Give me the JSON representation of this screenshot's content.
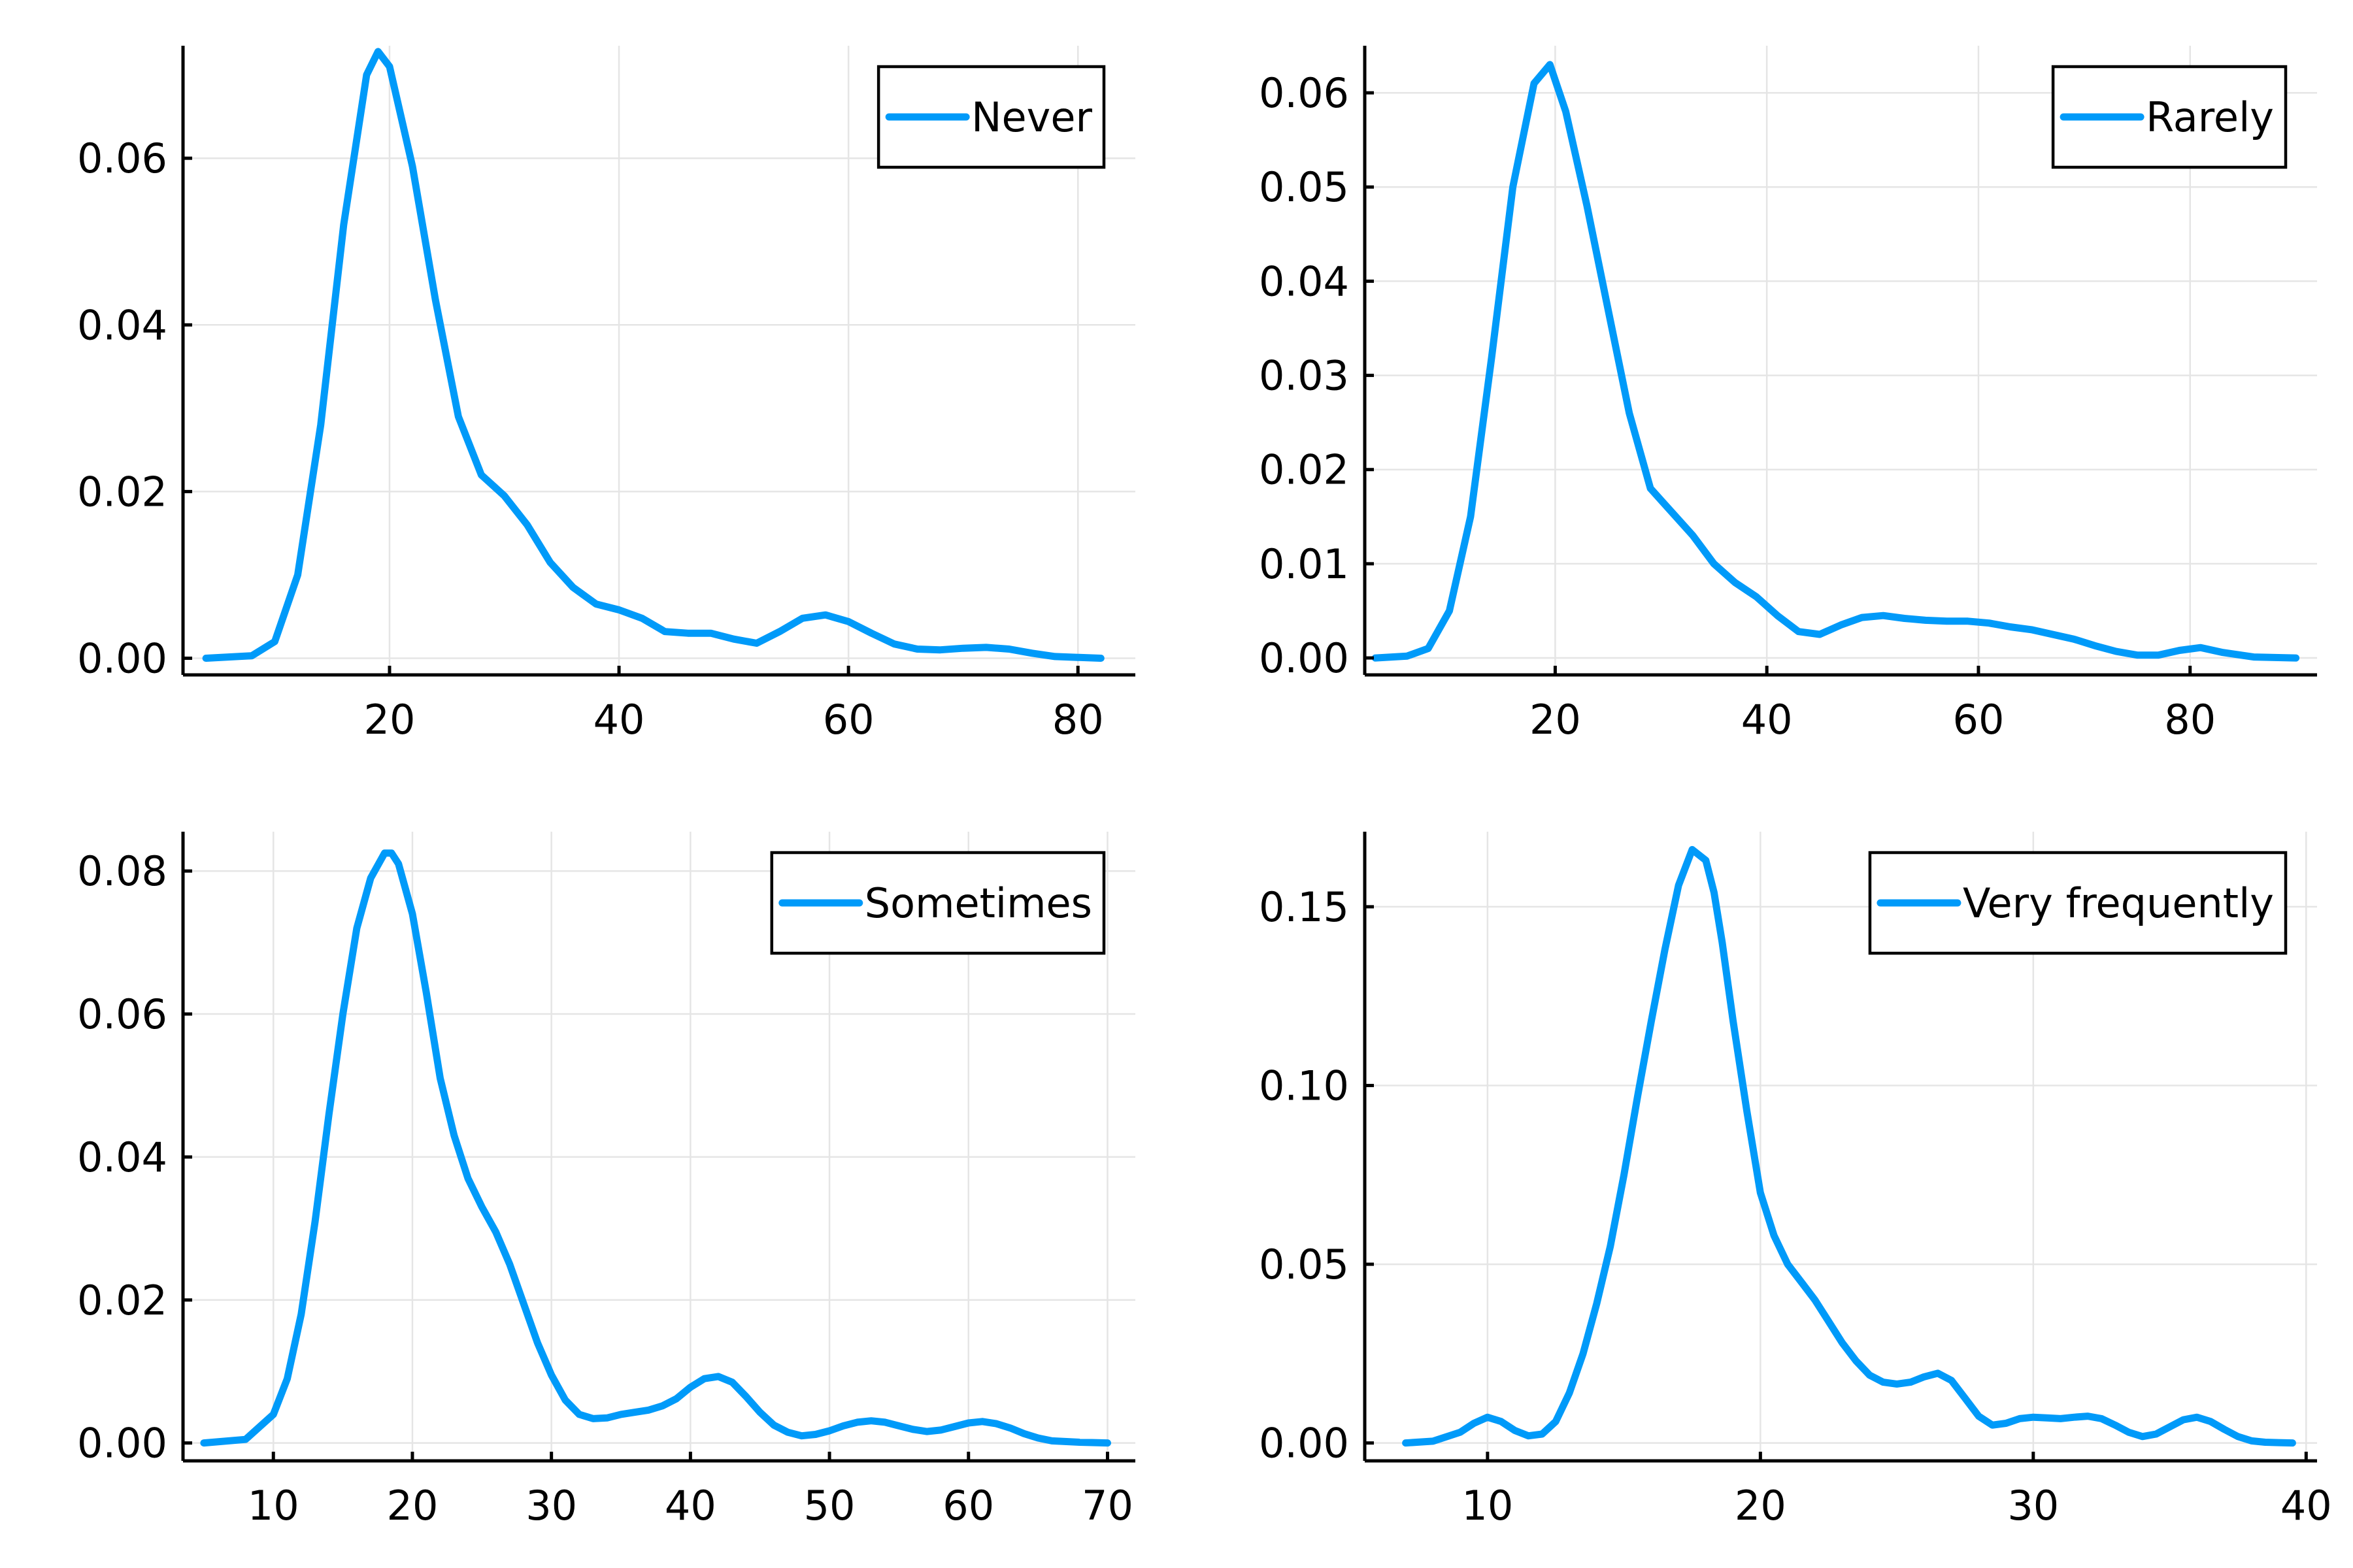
{
  "colors": {
    "series": "#009af9",
    "axis": "#000000",
    "grid": "#e5e5e5",
    "background": "#ffffff"
  },
  "chart_data": [
    {
      "type": "line",
      "title": "",
      "xlabel": "",
      "ylabel": "",
      "xlim": [
        2,
        85
      ],
      "ylim": [
        -0.002,
        0.0735
      ],
      "xticks": [
        20,
        40,
        60,
        80
      ],
      "yticks": [
        0.0,
        0.02,
        0.04,
        0.06
      ],
      "ytick_labels": [
        "0.00",
        "0.02",
        "0.04",
        "0.06"
      ],
      "grid": true,
      "legend": "top-right",
      "series": [
        {
          "name": "Never",
          "x": [
            4,
            8,
            10,
            12,
            14,
            16,
            18,
            19,
            20,
            22,
            24,
            26,
            28,
            30,
            32,
            34,
            36,
            38,
            40,
            42,
            44,
            46,
            48,
            50,
            52,
            54,
            56,
            58,
            60,
            62,
            64,
            66,
            68,
            70,
            72,
            74,
            76,
            78,
            80,
            82
          ],
          "y": [
            0.0,
            0.0003,
            0.002,
            0.01,
            0.028,
            0.052,
            0.07,
            0.0728,
            0.071,
            0.059,
            0.043,
            0.029,
            0.022,
            0.0195,
            0.016,
            0.0115,
            0.0085,
            0.0065,
            0.0058,
            0.0048,
            0.0032,
            0.003,
            0.003,
            0.0023,
            0.0018,
            0.0032,
            0.0048,
            0.0052,
            0.0044,
            0.003,
            0.0017,
            0.0011,
            0.001,
            0.0012,
            0.0013,
            0.0011,
            0.0006,
            0.0002,
            0.0001,
            0.0
          ]
        }
      ]
    },
    {
      "type": "line",
      "title": "",
      "xlabel": "",
      "ylabel": "",
      "xlim": [
        2,
        92
      ],
      "ylim": [
        -0.0018,
        0.065
      ],
      "xticks": [
        20,
        40,
        60,
        80
      ],
      "yticks": [
        0.0,
        0.01,
        0.02,
        0.03,
        0.04,
        0.05,
        0.06
      ],
      "ytick_labels": [
        "0.00",
        "0.01",
        "0.02",
        "0.03",
        "0.04",
        "0.05",
        "0.06"
      ],
      "grid": true,
      "legend": "top-right",
      "series": [
        {
          "name": "Rarely",
          "x": [
            3,
            6,
            8,
            10,
            12,
            14,
            16,
            18,
            19.5,
            21,
            23,
            25,
            27,
            29,
            31,
            33,
            35,
            37,
            39,
            41,
            43,
            45,
            47,
            49,
            51,
            53,
            55,
            57,
            59,
            61,
            63,
            65,
            67,
            69,
            71,
            73,
            75,
            77,
            79,
            81,
            83,
            86,
            90
          ],
          "y": [
            0.0,
            0.0002,
            0.001,
            0.005,
            0.015,
            0.032,
            0.05,
            0.061,
            0.063,
            0.058,
            0.048,
            0.037,
            0.026,
            0.018,
            0.0155,
            0.013,
            0.01,
            0.008,
            0.0065,
            0.0045,
            0.0028,
            0.0025,
            0.0035,
            0.0043,
            0.0045,
            0.0042,
            0.004,
            0.0039,
            0.0039,
            0.0037,
            0.0033,
            0.003,
            0.0025,
            0.002,
            0.0013,
            0.0007,
            0.0003,
            0.0003,
            0.0008,
            0.0011,
            0.0006,
            0.0001,
            0.0
          ]
        }
      ]
    },
    {
      "type": "line",
      "title": "",
      "xlabel": "",
      "ylabel": "",
      "xlim": [
        3.5,
        72
      ],
      "ylim": [
        -0.0025,
        0.0855
      ],
      "xticks": [
        10,
        20,
        30,
        40,
        50,
        60,
        70
      ],
      "yticks": [
        0.0,
        0.02,
        0.04,
        0.06,
        0.08
      ],
      "ytick_labels": [
        "0.00",
        "0.02",
        "0.04",
        "0.06",
        "0.08"
      ],
      "grid": true,
      "legend": "top-right",
      "series": [
        {
          "name": "Sometimes",
          "x": [
            5,
            8,
            10,
            11,
            12,
            13,
            14,
            15,
            16,
            17,
            18,
            18.5,
            19,
            20,
            21,
            22,
            23,
            24,
            25,
            26,
            27,
            28,
            29,
            30,
            31,
            32,
            33,
            34,
            35,
            36,
            37,
            38,
            39,
            40,
            41,
            42,
            43,
            44,
            45,
            46,
            47,
            48,
            49,
            50,
            51,
            52,
            53,
            54,
            55,
            56,
            57,
            58,
            59,
            60,
            61,
            62,
            63,
            64,
            65,
            66,
            68,
            70
          ],
          "y": [
            0.0,
            0.0005,
            0.004,
            0.009,
            0.018,
            0.031,
            0.046,
            0.06,
            0.072,
            0.079,
            0.0825,
            0.0825,
            0.081,
            0.074,
            0.063,
            0.051,
            0.043,
            0.037,
            0.033,
            0.0295,
            0.025,
            0.0195,
            0.014,
            0.0095,
            0.006,
            0.004,
            0.0034,
            0.0035,
            0.004,
            0.0043,
            0.0046,
            0.0052,
            0.0062,
            0.0078,
            0.009,
            0.0093,
            0.0085,
            0.0065,
            0.0043,
            0.0025,
            0.0015,
            0.001,
            0.0012,
            0.0017,
            0.0024,
            0.0029,
            0.0031,
            0.0029,
            0.0024,
            0.0019,
            0.0016,
            0.0018,
            0.0023,
            0.0028,
            0.003,
            0.0027,
            0.0021,
            0.0013,
            0.0007,
            0.0003,
            0.0001,
            0.0
          ]
        }
      ]
    },
    {
      "type": "line",
      "title": "",
      "xlabel": "",
      "ylabel": "",
      "xlim": [
        5.5,
        40.4
      ],
      "ylim": [
        -0.005,
        0.171
      ],
      "xticks": [
        10,
        20,
        30,
        40
      ],
      "yticks": [
        0.0,
        0.05,
        0.1,
        0.15
      ],
      "ytick_labels": [
        "0.00",
        "0.05",
        "0.10",
        "0.15"
      ],
      "grid": true,
      "legend": "top-right",
      "series": [
        {
          "name": "Very frequently",
          "x": [
            7,
            8,
            9,
            9.5,
            10,
            10.5,
            11,
            11.5,
            12,
            12.5,
            13,
            13.5,
            14,
            14.5,
            15,
            15.5,
            16,
            16.5,
            17,
            17.5,
            18,
            18.3,
            18.6,
            19,
            19.5,
            20,
            20.5,
            21,
            21.5,
            22,
            22.5,
            23,
            23.5,
            24,
            24.5,
            25,
            25.5,
            26,
            26.5,
            27,
            27.5,
            28,
            28.5,
            29,
            29.5,
            30,
            30.5,
            31,
            31.5,
            32,
            32.5,
            33,
            33.5,
            34,
            34.5,
            35,
            35.5,
            36,
            36.5,
            37,
            37.5,
            38,
            38.5,
            39,
            39.5
          ],
          "y": [
            0.0,
            0.0005,
            0.003,
            0.0055,
            0.0072,
            0.006,
            0.0035,
            0.002,
            0.0025,
            0.006,
            0.014,
            0.025,
            0.039,
            0.055,
            0.075,
            0.097,
            0.118,
            0.138,
            0.156,
            0.166,
            0.163,
            0.154,
            0.14,
            0.118,
            0.093,
            0.07,
            0.058,
            0.05,
            0.045,
            0.04,
            0.034,
            0.028,
            0.023,
            0.019,
            0.017,
            0.0165,
            0.017,
            0.0185,
            0.0195,
            0.0175,
            0.0125,
            0.0075,
            0.005,
            0.0055,
            0.0068,
            0.0072,
            0.007,
            0.0068,
            0.0072,
            0.0075,
            0.0068,
            0.005,
            0.003,
            0.0018,
            0.0025,
            0.0045,
            0.0065,
            0.0072,
            0.006,
            0.0038,
            0.0018,
            0.0006,
            0.0002,
            0.0001,
            0.0
          ]
        }
      ]
    }
  ]
}
